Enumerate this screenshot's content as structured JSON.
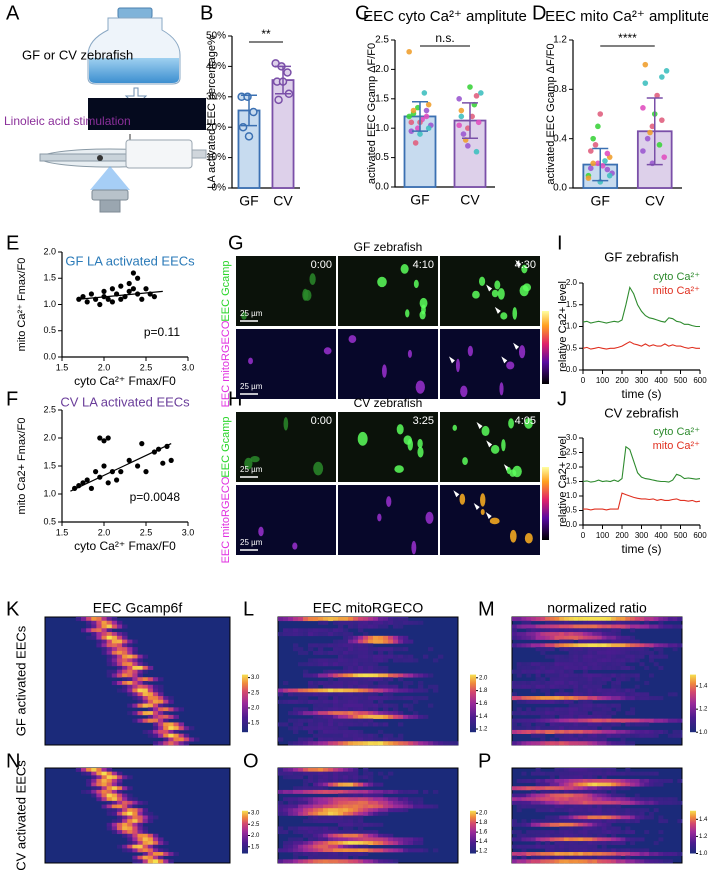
{
  "panel_letters": [
    "A",
    "B",
    "C",
    "D",
    "E",
    "F",
    "G",
    "H",
    "I",
    "J",
    "K",
    "L",
    "M",
    "N",
    "O",
    "P"
  ],
  "panel_a": {
    "zebrafish_label": "GF or CV zebrafish",
    "stimulation_label": "Linoleic acid stimulation"
  },
  "chart_data": [
    {
      "type": "bar",
      "ylabel": "LA activated EEC percentage%",
      "categories": [
        "GF",
        "CV"
      ],
      "values": [
        25.5,
        35.5
      ],
      "errors": [
        5,
        4.5
      ],
      "points": [
        [
          30,
          30,
          25,
          20,
          17
        ],
        [
          41,
          40,
          38,
          35,
          35,
          31,
          29
        ]
      ],
      "colors": [
        "#c7dbef",
        "#ddd0ea"
      ],
      "edge_colors": [
        "#3b70b2",
        "#7a4fa8"
      ],
      "ylim": [
        0,
        50
      ],
      "yticks": [
        {
          "value": 0,
          "label": "0%"
        },
        {
          "value": 10,
          "label": "10%"
        },
        {
          "value": 20,
          "label": "20%"
        },
        {
          "value": 30,
          "label": "30%"
        },
        {
          "value": 40,
          "label": "40%"
        },
        {
          "value": 50,
          "label": "50%"
        }
      ],
      "significance": "**"
    },
    {
      "type": "bar",
      "title": "EEC cyto Ca²⁺ amplitute",
      "ylabel": "activated EEC Gcamp ΔF/F0",
      "categories": [
        "GF",
        "CV"
      ],
      "values": [
        1.2,
        1.13
      ],
      "errors": [
        0.25,
        0.3
      ],
      "points": [
        [
          1.2,
          1.0,
          1.3,
          1.1,
          0.9,
          1.4,
          1.25,
          1.15,
          1.05,
          0.75,
          1.6,
          2.3,
          1.35,
          1.2,
          0.95,
          1.1,
          1.0,
          1.3
        ],
        [
          1.5,
          1.0,
          0.6,
          1.3,
          1.7,
          1.1,
          0.9,
          1.2,
          1.6,
          0.8,
          1.4,
          1.05,
          0.7,
          1.55,
          1.2
        ]
      ],
      "point_colors": [
        "#3dd33d",
        "#e050c0",
        "#9b59d0",
        "#e06080",
        "#40c0c0",
        "#f0a030"
      ],
      "colors": [
        "#c7dbef",
        "#ddd0ea"
      ],
      "edge_colors": [
        "#3b70b2",
        "#7a4fa8"
      ],
      "ylim": [
        0,
        2.5
      ],
      "yticks": [
        {
          "value": 0,
          "label": "0.0"
        },
        0.5,
        {
          "value": 1,
          "label": "1.0"
        },
        1.5,
        {
          "value": 2,
          "label": "2.0"
        },
        2.5
      ],
      "significance": "n.s."
    },
    {
      "type": "bar",
      "title": "EEC mito Ca²⁺ amplitute",
      "ylabel": "activated EEC Gcamp ΔF/F0",
      "categories": [
        "GF",
        "CV"
      ],
      "values": [
        0.19,
        0.46
      ],
      "errors": [
        0.13,
        0.27
      ],
      "points": [
        [
          0.1,
          0.2,
          0.15,
          0.3,
          0.05,
          0.25,
          0.4,
          0.18,
          0.12,
          0.35,
          0.22,
          0.08,
          0.5,
          0.28,
          0.16,
          0.6,
          0.1,
          0.2
        ],
        [
          0.3,
          0.5,
          0.9,
          1.0,
          0.6,
          0.25,
          0.4,
          0.75,
          0.95,
          0.45,
          0.35,
          0.65,
          0.2,
          0.55,
          0.85
        ]
      ],
      "point_colors": [
        "#3dd33d",
        "#e050c0",
        "#9b59d0",
        "#e06080",
        "#40c0c0",
        "#f0a030"
      ],
      "colors": [
        "#c7dbef",
        "#ddd0ea"
      ],
      "edge_colors": [
        "#3b70b2",
        "#7a4fa8"
      ],
      "ylim": [
        0,
        1.2
      ],
      "yticks": [
        {
          "value": 0,
          "label": "0.0"
        },
        0.4,
        0.8,
        1.2
      ],
      "significance": "****"
    },
    {
      "type": "scatter",
      "title": "GF LA activated EECs",
      "title_color": "#2a7ab8",
      "xlabel": "cyto Ca²⁺ Fmax/F0",
      "ylabel": "mito Ca²⁺ Fmax/F0",
      "x": [
        1.7,
        1.75,
        1.8,
        1.85,
        1.9,
        1.95,
        2.0,
        2.0,
        2.05,
        2.1,
        2.1,
        2.15,
        2.2,
        2.2,
        2.25,
        2.3,
        2.3,
        2.35,
        2.35,
        2.4,
        2.4,
        2.45,
        2.5,
        2.55,
        2.6
      ],
      "y": [
        1.1,
        1.15,
        1.05,
        1.2,
        1.1,
        1.0,
        1.15,
        1.25,
        1.1,
        1.05,
        1.3,
        1.2,
        1.1,
        1.35,
        1.15,
        1.25,
        1.4,
        1.3,
        1.6,
        1.5,
        1.2,
        1.1,
        1.3,
        1.2,
        1.15
      ],
      "fit": {
        "x": [
          1.7,
          2.7
        ],
        "y": [
          1.1,
          1.25
        ]
      },
      "annotation": "p=0.11",
      "xlim": [
        1.5,
        3.0
      ],
      "xticks": [
        1.5,
        {
          "value": 2,
          "label": "2.0"
        },
        2.5,
        {
          "value": 3,
          "label": "3.0"
        }
      ],
      "ylim": [
        0,
        2.0
      ],
      "yticks": [
        {
          "value": 0,
          "label": "0.0"
        },
        0.5,
        {
          "value": 1,
          "label": "1.0"
        },
        1.5,
        {
          "value": 2,
          "label": "2.0"
        }
      ]
    },
    {
      "type": "scatter",
      "title": "CV LA activated EECs",
      "title_color": "#6a3d9a",
      "xlabel": "cyto Ca²⁺ Fmax/F0",
      "ylabel": "mito Ca2+ Fmax/F0",
      "x": [
        1.65,
        1.7,
        1.75,
        1.8,
        1.85,
        1.9,
        1.95,
        1.95,
        2.0,
        2.0,
        2.05,
        2.05,
        2.1,
        2.15,
        2.2,
        2.3,
        2.4,
        2.45,
        2.5,
        2.6,
        2.65,
        2.7,
        2.75,
        2.8
      ],
      "y": [
        1.1,
        1.15,
        1.2,
        1.25,
        1.1,
        1.4,
        1.3,
        2.0,
        1.5,
        1.95,
        1.2,
        2.0,
        1.4,
        1.25,
        1.4,
        1.6,
        1.5,
        1.9,
        1.4,
        1.75,
        1.8,
        1.55,
        1.85,
        1.6
      ],
      "fit": {
        "x": [
          1.6,
          2.8
        ],
        "y": [
          1.05,
          1.9
        ]
      },
      "annotation": "p=0.0048",
      "xlim": [
        1.5,
        3.0
      ],
      "xticks": [
        1.5,
        {
          "value": 2,
          "label": "2.0"
        },
        2.5,
        {
          "value": 3,
          "label": "3.0"
        }
      ],
      "ylim": [
        0.5,
        2.5
      ],
      "yticks": [
        0.5,
        {
          "value": 1,
          "label": "1.0"
        },
        1.5,
        {
          "value": 2,
          "label": "2.0"
        },
        2.5
      ]
    },
    {
      "type": "line",
      "title": "GF zebrafish",
      "xlabel": "time (s)",
      "ylabel": "relative Ca2+ level",
      "x": [
        0,
        20,
        40,
        60,
        80,
        100,
        120,
        140,
        160,
        180,
        200,
        220,
        240,
        260,
        280,
        300,
        320,
        340,
        360,
        380,
        400,
        420,
        440,
        460,
        480,
        500,
        520,
        540,
        560,
        580,
        600
      ],
      "series": [
        {
          "name": "cyto Ca²⁺",
          "color": "#2e8b2e",
          "values": [
            1.1,
            1.12,
            1.08,
            1.1,
            1.12,
            1.1,
            1.08,
            1.1,
            1.12,
            1.1,
            1.15,
            1.5,
            1.9,
            1.75,
            1.5,
            1.35,
            1.25,
            1.2,
            1.18,
            1.15,
            1.12,
            1.1,
            1.2,
            1.18,
            1.12,
            1.1,
            1.05,
            1.05,
            1.02,
            1.0,
            1.0
          ]
        },
        {
          "name": "mito Ca²⁺",
          "color": "#e03020",
          "values": [
            0.5,
            0.52,
            0.48,
            0.5,
            0.52,
            0.5,
            0.48,
            0.5,
            0.5,
            0.52,
            0.55,
            0.6,
            0.65,
            0.6,
            0.58,
            0.55,
            0.6,
            0.55,
            0.58,
            0.55,
            0.55,
            0.6,
            0.55,
            0.58,
            0.55,
            0.55,
            0.52,
            0.5,
            0.52,
            0.5,
            0.5
          ]
        }
      ],
      "xlim": [
        0,
        600
      ],
      "xticks": [
        0,
        100,
        200,
        300,
        400,
        500,
        600
      ],
      "ylim": [
        0,
        2.0
      ],
      "yticks": [
        {
          "value": 0,
          "label": "0.0"
        },
        0.5,
        {
          "value": 1,
          "label": "1.0"
        },
        1.5,
        {
          "value": 2,
          "label": "2.0"
        }
      ]
    },
    {
      "type": "line",
      "title": "CV zebrafish",
      "xlabel": "time (s)",
      "ylabel": "relative Ca2+ level",
      "x": [
        0,
        20,
        40,
        60,
        80,
        100,
        120,
        140,
        160,
        180,
        200,
        220,
        240,
        260,
        280,
        300,
        320,
        340,
        360,
        380,
        400,
        420,
        440,
        460,
        480,
        500,
        520,
        540,
        560,
        580,
        600
      ],
      "series": [
        {
          "name": "cyto Ca²⁺",
          "color": "#2e8b2e",
          "values": [
            1.5,
            1.52,
            1.48,
            1.5,
            1.55,
            1.5,
            1.52,
            1.5,
            1.55,
            1.5,
            1.6,
            2.7,
            2.6,
            2.2,
            1.8,
            1.65,
            1.6,
            1.58,
            1.55,
            1.52,
            1.5,
            1.5,
            1.48,
            1.55,
            1.75,
            1.7,
            1.6,
            1.62,
            1.6,
            1.58,
            1.6
          ]
        },
        {
          "name": "mito Ca²⁺",
          "color": "#e03020",
          "values": [
            0.55,
            0.55,
            0.52,
            0.55,
            0.55,
            0.55,
            0.52,
            0.55,
            0.55,
            0.55,
            1.1,
            1.05,
            1.0,
            0.95,
            0.92,
            0.9,
            0.9,
            0.88,
            0.9,
            0.85,
            0.88,
            0.85,
            0.85,
            0.88,
            0.9,
            0.85,
            0.85,
            0.82,
            0.85,
            0.8,
            0.82
          ]
        }
      ],
      "xlim": [
        0,
        600
      ],
      "xticks": [
        0,
        100,
        200,
        300,
        400,
        500,
        600
      ],
      "ylim": [
        0,
        3.0
      ],
      "yticks": [
        {
          "value": 0,
          "label": "0.0"
        },
        0.5,
        {
          "value": 1,
          "label": "1.0"
        },
        1.5,
        {
          "value": 2,
          "label": "2.0"
        },
        2.5,
        {
          "value": 3,
          "label": "3.0"
        }
      ]
    }
  ],
  "imaging": [
    {
      "title": "GF zebrafish",
      "times": [
        "0:00",
        "4:10",
        "4:30"
      ],
      "row_labels": [
        "EEC Gcamp",
        "EEC mitoRGECO"
      ],
      "scale_bar": "25 µm"
    },
    {
      "title": "CV zebrafish",
      "times": [
        "0:00",
        "3:25",
        "4:05"
      ],
      "row_labels": [
        "EEC Gcamp",
        "EEC mitoRGECO"
      ],
      "scale_bar": "25 µm"
    }
  ],
  "heatmaps": {
    "row_labels": [
      "GF activated EECs",
      "CV activated EECs"
    ],
    "columns": [
      {
        "title": "EEC Gcamp6f",
        "clim": [
          1.2,
          3.1
        ],
        "ticks": [
          1.5,
          {
            "value": 2,
            "label": "2.0"
          },
          2.5,
          {
            "value": 3,
            "label": "3.0"
          }
        ]
      },
      {
        "title": "EEC mitoRGECO",
        "clim": [
          1.15,
          2.05
        ],
        "ticks": [
          1.2,
          1.4,
          1.6,
          1.8,
          {
            "value": 2,
            "label": "2.0"
          }
        ]
      },
      {
        "title": "normalized ratio",
        "clim": [
          1.0,
          1.5
        ],
        "ticks": [
          {
            "value": 1,
            "label": "1.0"
          },
          1.2,
          1.4
        ]
      }
    ]
  }
}
